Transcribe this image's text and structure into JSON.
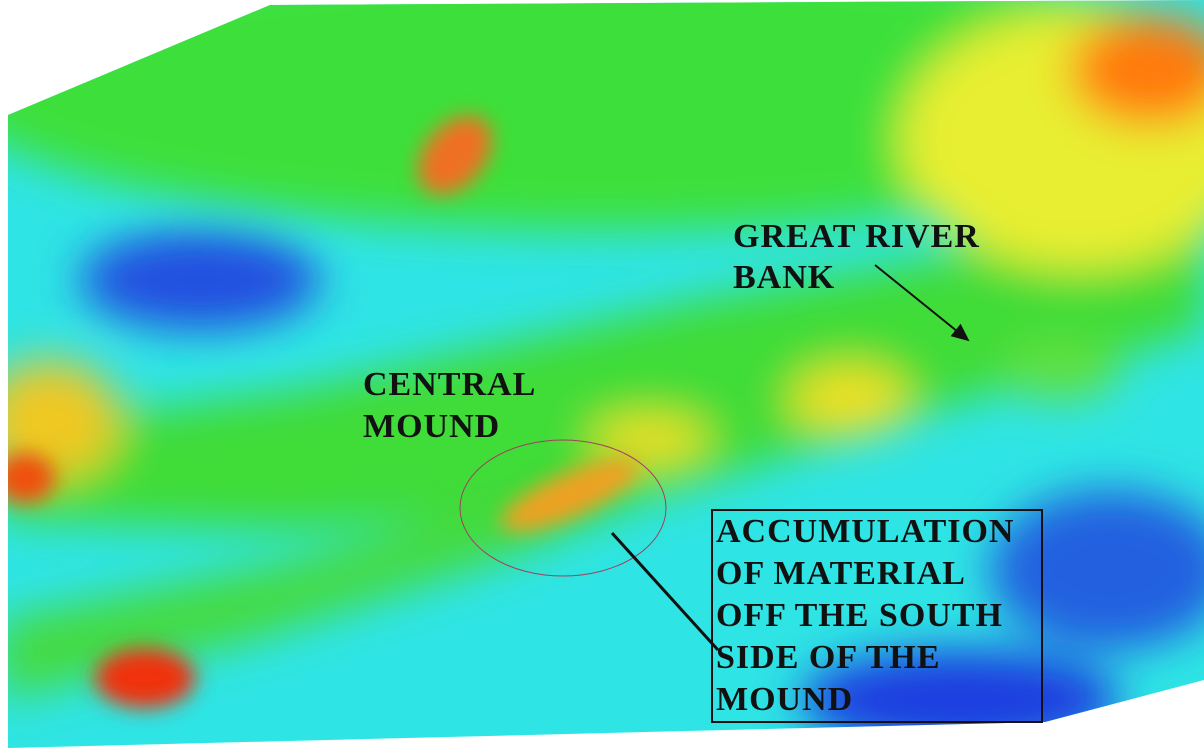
{
  "annotations": [
    {
      "lines": [
        "GREAT RIVER",
        "BANK"
      ]
    },
    {
      "lines": [
        "CENTRAL",
        "MOUND"
      ]
    },
    {
      "lines": [
        "ACCUMULATION",
        "OF MATERIAL",
        "OFF THE SOUTH",
        "SIDE OF THE",
        "MOUND"
      ]
    }
  ]
}
